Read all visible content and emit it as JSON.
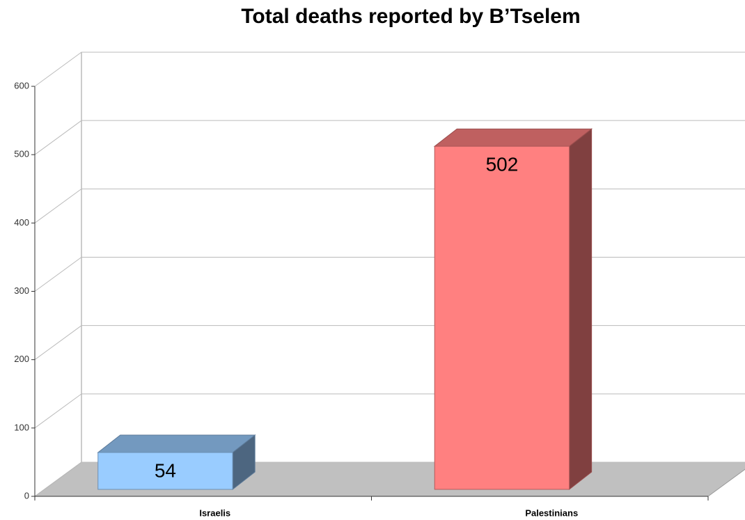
{
  "chart_data": {
    "type": "bar",
    "title": "Total deaths reported by B’Tselem",
    "categories": [
      "Israelis",
      "Palestinians"
    ],
    "series": [
      {
        "name": "Deaths",
        "values": [
          54,
          502
        ],
        "colors": [
          "#99ccff",
          "#ff8080"
        ]
      }
    ],
    "ylim": [
      0,
      600
    ],
    "yticks": [
      0,
      100,
      200,
      300,
      400,
      500,
      600
    ],
    "grid": true
  }
}
